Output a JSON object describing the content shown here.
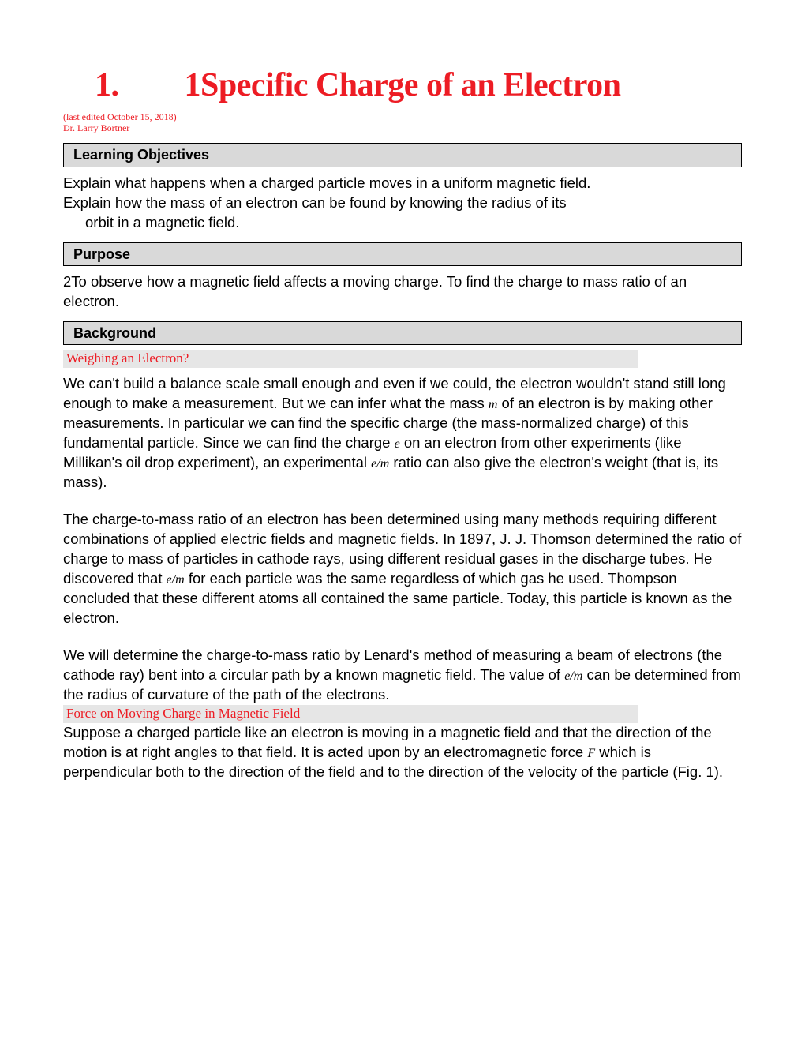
{
  "title": "1.  1Specific Charge of an Electron",
  "meta": {
    "edited": "(last edited October 15, 2018)",
    "author": "Dr. Larry Bortner"
  },
  "sections": {
    "objectives": {
      "header": "Learning Objectives",
      "line1": "Explain what happens when a charged particle moves in a uniform magnetic field.",
      "line2a": "Explain how the mass of an electron can be found by knowing the radius of its",
      "line2b": "orbit in a magnetic field."
    },
    "purpose": {
      "header": "Purpose",
      "text": "2To observe how a magnetic field affects a moving charge. To find the charge to mass ratio of an electron."
    },
    "background": {
      "header": "Background",
      "sub1": "Weighing an Electron?",
      "p1a": "We can't build a balance scale small enough and even if we could, the electron wouldn't stand still long enough to make a measurement. But we can infer what the mass ",
      "p1_m": "m",
      "p1b": " of an electron is by making other measurements. In particular we can find the specific charge (the mass-normalized charge) of this fundamental particle. Since we can find the charge ",
      "p1_e": "e",
      "p1c": " on an electron from other experiments (like Millikan's oil drop experiment), an experimental ",
      "p1_em": "e/m",
      "p1d": " ratio can also give the electron's weight (that is, its mass).",
      "p2a": "The charge-to-mass ratio of an electron has been determined using many methods requiring different combinations of applied electric fields and magnetic fields. In 1897, J. J. Thomson determined the ratio of charge to mass of particles in cathode rays, using different residual gases in the discharge tubes. He discovered that ",
      "p2_em": "e/m",
      "p2b": " for each particle was the same regardless of which gas he used. Thompson concluded that these different atoms all contained the same particle. Today, this particle is known as the electron.",
      "p3a": "We will determine the charge-to-mass ratio by Lenard's method of measuring a beam of electrons (the cathode ray) bent into a circular path by a known magnetic field. The value of ",
      "p3_em": "e/m",
      "p3b": " can be determined from the radius of curvature of the path of the electrons.",
      "sub2": "Force on Moving Charge in Magnetic Field",
      "p4a": "Suppose a charged particle like an electron is moving in a magnetic field and that the direction of the motion is at right angles to that field. It is acted upon by an electromagnetic force ",
      "p4_F": "F",
      "p4b": " which is perpendicular both to the direction of the field and to the direction of the velocity of the particle (Fig. 1)."
    }
  }
}
